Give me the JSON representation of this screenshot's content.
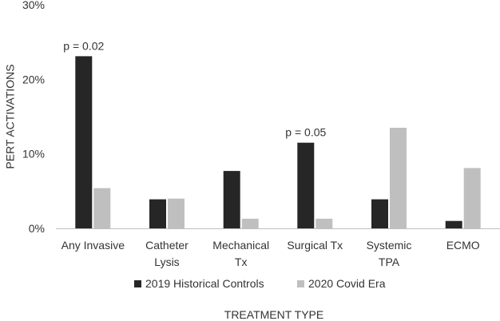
{
  "chart_data": {
    "type": "bar",
    "title": "",
    "xlabel": "TREATMENT TYPE",
    "ylabel": "PERT ACTIVATIONS",
    "ylim": [
      0,
      30
    ],
    "yticks": [
      0,
      10,
      20,
      30
    ],
    "ytick_labels": [
      "0%",
      "10%",
      "20%",
      "30%"
    ],
    "grid": false,
    "legend": "bottom",
    "categories": [
      [
        "Any Invasive"
      ],
      [
        "Catheter",
        "Lysis"
      ],
      [
        "Mechanical",
        "Tx"
      ],
      [
        "Surgical Tx"
      ],
      [
        "Systemic",
        "TPA"
      ],
      [
        "ECMO"
      ]
    ],
    "series": [
      {
        "name": "2019 Historical Controls",
        "color": "#262626",
        "values": [
          23.1,
          3.9,
          7.7,
          11.5,
          3.9,
          1.0
        ]
      },
      {
        "name": "2020 Covid Era",
        "color": "#bfbfbf",
        "values": [
          5.4,
          4.0,
          1.3,
          1.3,
          13.5,
          8.1
        ]
      }
    ],
    "annotations": [
      {
        "text": "p = 0.02",
        "category_index": 0
      },
      {
        "text": "p = 0.05",
        "category_index": 3
      }
    ]
  }
}
